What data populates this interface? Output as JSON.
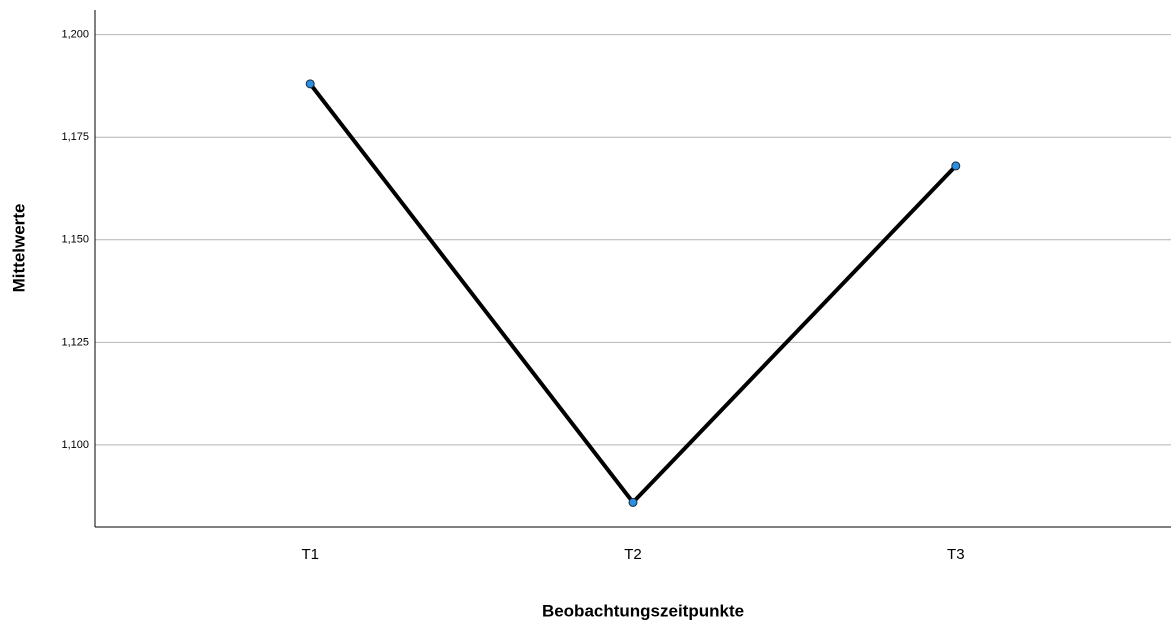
{
  "chart_data": {
    "type": "line",
    "x_label": "Beobachtungszeitpunkte",
    "y_label": "Mittelwerte",
    "categories": [
      "T1",
      "T2",
      "T3"
    ],
    "series": [
      {
        "name": "Mittelwerte",
        "color": "#000000",
        "marker_color": "#2b8fe0",
        "values": [
          1.188,
          1.086,
          1.168
        ]
      }
    ],
    "ylim": [
      1.08,
      1.206
    ],
    "yticks": [
      {
        "value": 1.1,
        "label": "1,100"
      },
      {
        "value": 1.125,
        "label": "1,125"
      },
      {
        "value": 1.15,
        "label": "1,150"
      },
      {
        "value": 1.175,
        "label": "1,175"
      },
      {
        "value": 1.2,
        "label": "1,200"
      }
    ],
    "grid": true
  }
}
